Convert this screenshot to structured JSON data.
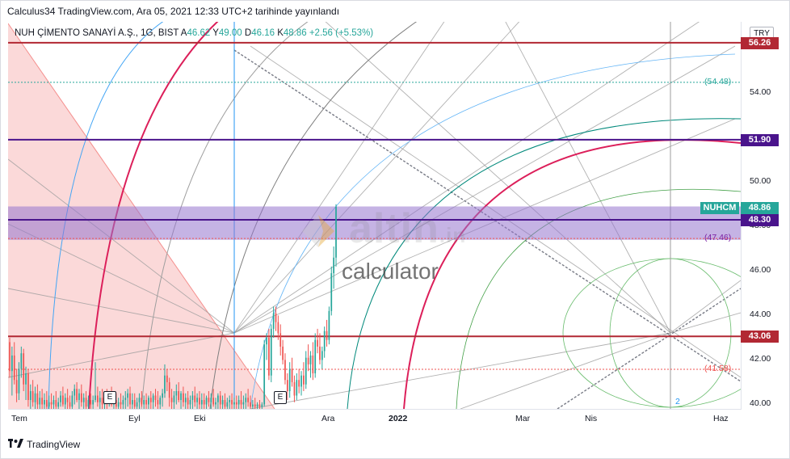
{
  "header": "Calculus34 TradingView.com, Ara 05, 2021 12:33 UTC+2 tarihinde yayınlandı",
  "legend": {
    "symbol": "NUH ÇİMENTO SANAYİ A.Ş., 1G, BIST",
    "o_key": "A",
    "o": "46.62",
    "h_key": "Y",
    "h": "49.00",
    "l_key": "D",
    "l": "46.16",
    "c_key": "K",
    "c": "48.86",
    "change": "+2.56 (+5.53%)"
  },
  "currency": "TRY",
  "footer": "TradingView",
  "watermark": {
    "brand": "altin",
    "tld": ".in",
    "sub": "calculator"
  },
  "colors": {
    "up": "#26a69a",
    "down": "#ef5350",
    "red_line": "#b22833",
    "purple_line": "#4a148c",
    "band": "#9575cd"
  },
  "chart_data": {
    "type": "candlestick",
    "symbol": "NUHCM",
    "ylim": [
      39.8,
      57.2
    ],
    "y_ticks": [
      "40.00",
      "42.00",
      "44.00",
      "46.00",
      "48.00",
      "50.00",
      "54.00"
    ],
    "x_ticks": [
      "Tem",
      "Eyl",
      "Eki",
      "Ara",
      "2022",
      "Mar",
      "Nis",
      "Haz"
    ],
    "price_labels": [
      {
        "label": "56.26",
        "value": 56.26,
        "color": "#b22833"
      },
      {
        "label": "51.90",
        "value": 51.9,
        "color": "#4a148c"
      },
      {
        "label": "NUHCM",
        "value": 48.86,
        "color": "#26a69a"
      },
      {
        "label": "48.86",
        "value": 48.86,
        "color": "#26a69a"
      },
      {
        "label": "48.30",
        "value": 48.3,
        "color": "#4a148c"
      },
      {
        "label": "43.06",
        "value": 43.06,
        "color": "#b22833"
      }
    ],
    "plot_texts": [
      {
        "label": "(54.48)",
        "value": 54.48,
        "color": "#26a69a"
      },
      {
        "label": "(47.46)",
        "value": 47.46,
        "color": "#7b1fa2"
      },
      {
        "label": "(41.58)",
        "value": 41.58,
        "color": "#ef5350"
      },
      {
        "label": "2",
        "value": 40.1,
        "color": "#2196f3"
      }
    ],
    "markers": [
      "E",
      "E"
    ],
    "horizontal_lines": [
      56.26,
      54.48,
      51.9,
      48.3,
      47.46,
      43.06,
      41.58
    ],
    "band": [
      47.4,
      48.9
    ],
    "candles": [
      [
        42.8,
        43.0,
        41.2,
        41.5
      ],
      [
        41.5,
        42.6,
        40.4,
        42.2
      ],
      [
        42.2,
        42.8,
        40.9,
        41.1
      ],
      [
        41.1,
        41.6,
        40.1,
        40.5
      ],
      [
        40.5,
        41.9,
        40.2,
        41.6
      ],
      [
        41.6,
        42.6,
        41.2,
        42.3
      ],
      [
        42.3,
        42.5,
        40.6,
        40.9
      ],
      [
        40.9,
        41.7,
        40.2,
        41.4
      ],
      [
        41.4,
        41.6,
        39.9,
        40.2
      ],
      [
        40.2,
        40.9,
        39.8,
        40.6
      ],
      [
        40.6,
        41.1,
        39.9,
        40.1
      ],
      [
        40.1,
        40.8,
        39.8,
        40.5
      ],
      [
        40.5,
        40.9,
        39.8,
        40.0
      ],
      [
        40.0,
        40.6,
        39.8,
        40.3
      ],
      [
        40.3,
        40.7,
        39.8,
        40.0
      ],
      [
        40.0,
        40.5,
        39.8,
        40.2
      ],
      [
        40.2,
        40.6,
        39.8,
        39.9
      ],
      [
        39.9,
        40.4,
        39.8,
        40.1
      ],
      [
        40.1,
        40.5,
        39.8,
        40.0
      ],
      [
        40.0,
        40.4,
        39.8,
        40.2
      ],
      [
        40.2,
        40.6,
        39.8,
        39.9
      ],
      [
        39.9,
        40.3,
        39.8,
        40.1
      ],
      [
        40.1,
        40.6,
        39.9,
        40.4
      ],
      [
        40.4,
        40.8,
        39.9,
        40.0
      ],
      [
        40.0,
        40.5,
        39.8,
        40.3
      ],
      [
        40.3,
        40.7,
        39.8,
        40.1
      ],
      [
        40.1,
        40.4,
        39.8,
        39.9
      ],
      [
        39.9,
        40.6,
        39.8,
        40.4
      ],
      [
        40.4,
        40.9,
        40.0,
        40.7
      ],
      [
        40.7,
        41.0,
        40.1,
        40.2
      ],
      [
        40.2,
        40.7,
        39.8,
        40.5
      ],
      [
        40.5,
        40.9,
        39.9,
        40.1
      ],
      [
        40.1,
        40.5,
        39.8,
        40.3
      ],
      [
        40.3,
        40.6,
        39.8,
        39.9
      ],
      [
        39.9,
        40.4,
        39.8,
        40.2
      ],
      [
        40.2,
        40.5,
        39.8,
        40.0
      ],
      [
        40.0,
        40.4,
        39.8,
        40.2
      ],
      [
        40.2,
        41.9,
        40.1,
        40.4
      ],
      [
        40.4,
        40.8,
        39.9,
        40.1
      ],
      [
        40.1,
        40.6,
        39.8,
        40.3
      ],
      [
        40.3,
        40.7,
        39.8,
        40.0
      ],
      [
        40.0,
        40.6,
        39.8,
        40.4
      ],
      [
        40.4,
        40.7,
        39.8,
        40.1
      ],
      [
        40.1,
        40.6,
        39.9,
        40.4
      ],
      [
        40.4,
        40.8,
        39.9,
        40.0
      ],
      [
        40.0,
        40.4,
        39.8,
        40.2
      ],
      [
        40.2,
        40.5,
        39.8,
        39.9
      ],
      [
        39.9,
        40.3,
        39.8,
        40.1
      ],
      [
        40.1,
        40.5,
        39.8,
        40.0
      ],
      [
        40.0,
        40.4,
        39.8,
        40.2
      ],
      [
        40.2,
        40.6,
        39.8,
        40.3
      ],
      [
        40.3,
        40.7,
        39.9,
        40.5
      ],
      [
        40.5,
        40.8,
        39.8,
        40.0
      ],
      [
        40.0,
        40.5,
        39.8,
        40.2
      ],
      [
        40.2,
        40.5,
        39.8,
        39.9
      ],
      [
        39.9,
        40.3,
        39.8,
        40.1
      ],
      [
        40.1,
        40.5,
        39.8,
        40.3
      ],
      [
        40.3,
        40.6,
        39.9,
        40.0
      ],
      [
        40.0,
        40.4,
        39.8,
        40.2
      ],
      [
        40.2,
        40.5,
        39.8,
        40.0
      ],
      [
        40.0,
        40.4,
        39.8,
        40.3
      ],
      [
        40.3,
        40.6,
        39.8,
        40.1
      ],
      [
        40.1,
        40.5,
        39.8,
        40.4
      ],
      [
        40.4,
        40.7,
        39.9,
        40.2
      ],
      [
        40.2,
        40.6,
        39.8,
        40.0
      ],
      [
        40.0,
        40.4,
        39.8,
        40.3
      ],
      [
        40.3,
        40.7,
        39.9,
        40.5
      ],
      [
        40.5,
        41.8,
        40.3,
        41.3
      ],
      [
        41.3,
        41.6,
        40.6,
        41.0
      ],
      [
        41.0,
        41.2,
        39.9,
        40.3
      ],
      [
        40.3,
        40.7,
        39.8,
        40.1
      ],
      [
        40.1,
        40.6,
        39.8,
        40.4
      ],
      [
        40.4,
        40.9,
        40.0,
        40.6
      ],
      [
        40.6,
        41.0,
        40.1,
        40.2
      ],
      [
        40.2,
        40.6,
        39.8,
        40.5
      ],
      [
        40.5,
        40.8,
        39.9,
        40.1
      ],
      [
        40.1,
        40.5,
        39.8,
        40.3
      ],
      [
        40.3,
        40.6,
        39.8,
        40.0
      ],
      [
        40.0,
        40.4,
        39.8,
        40.2
      ],
      [
        40.2,
        40.6,
        39.8,
        40.4
      ],
      [
        40.4,
        40.8,
        39.9,
        40.1
      ],
      [
        40.1,
        40.5,
        39.8,
        40.3
      ],
      [
        40.3,
        40.6,
        39.8,
        40.0
      ],
      [
        40.0,
        40.5,
        39.8,
        40.2
      ],
      [
        40.2,
        40.5,
        39.8,
        40.0
      ],
      [
        40.0,
        40.4,
        39.8,
        40.3
      ],
      [
        40.3,
        40.6,
        39.9,
        40.1
      ],
      [
        40.1,
        40.5,
        39.8,
        40.3
      ],
      [
        40.3,
        40.7,
        39.9,
        40.0
      ],
      [
        40.0,
        40.3,
        39.8,
        40.1
      ],
      [
        40.1,
        40.5,
        39.8,
        40.4
      ],
      [
        40.4,
        40.6,
        39.8,
        40.0
      ],
      [
        40.0,
        40.4,
        39.8,
        40.2
      ],
      [
        40.2,
        40.5,
        39.8,
        39.9
      ],
      [
        39.9,
        40.3,
        39.8,
        40.1
      ],
      [
        40.1,
        40.4,
        39.8,
        40.2
      ],
      [
        40.2,
        40.5,
        39.8,
        40.0
      ],
      [
        40.0,
        40.3,
        39.8,
        40.1
      ],
      [
        40.1,
        40.4,
        39.8,
        40.0
      ],
      [
        40.0,
        40.4,
        39.8,
        40.2
      ],
      [
        40.2,
        40.6,
        39.8,
        40.0
      ],
      [
        40.0,
        40.4,
        39.8,
        40.1
      ],
      [
        40.1,
        40.5,
        39.8,
        40.3
      ],
      [
        40.3,
        40.7,
        39.9,
        40.1
      ],
      [
        40.1,
        40.4,
        39.8,
        39.9
      ],
      [
        39.9,
        40.2,
        39.8,
        40.0
      ],
      [
        40.0,
        40.3,
        39.8,
        39.9
      ],
      [
        39.9,
        40.1,
        39.8,
        40.0
      ],
      [
        40.0,
        40.2,
        39.8,
        39.9
      ],
      [
        39.9,
        40.1,
        39.8,
        40.0
      ],
      [
        40.0,
        42.9,
        39.9,
        42.7
      ],
      [
        42.7,
        43.2,
        42.0,
        43.0
      ],
      [
        43.0,
        43.4,
        41.1,
        41.3
      ],
      [
        41.3,
        43.6,
        41.0,
        43.4
      ],
      [
        43.4,
        44.4,
        43.0,
        44.1
      ],
      [
        44.1,
        44.4,
        43.3,
        43.7
      ],
      [
        43.7,
        44.0,
        42.9,
        43.2
      ],
      [
        43.2,
        43.6,
        42.2,
        42.6
      ],
      [
        42.6,
        42.9,
        41.8,
        42.0
      ],
      [
        42.0,
        42.3,
        40.9,
        41.1
      ],
      [
        41.1,
        41.4,
        40.2,
        40.6
      ],
      [
        40.6,
        41.9,
        40.3,
        41.6
      ],
      [
        41.6,
        42.1,
        40.8,
        41.0
      ],
      [
        41.0,
        41.3,
        40.1,
        40.4
      ],
      [
        40.4,
        41.4,
        40.2,
        41.1
      ],
      [
        41.1,
        41.6,
        40.5,
        40.8
      ],
      [
        40.8,
        41.5,
        40.4,
        41.3
      ],
      [
        41.3,
        41.9,
        40.6,
        40.9
      ],
      [
        40.9,
        42.4,
        40.7,
        42.1
      ],
      [
        42.1,
        42.7,
        41.5,
        41.8
      ],
      [
        41.8,
        42.4,
        41.2,
        42.2
      ],
      [
        42.2,
        42.8,
        41.1,
        41.4
      ],
      [
        41.4,
        43.2,
        41.2,
        42.9
      ],
      [
        42.9,
        43.4,
        42.3,
        42.6
      ],
      [
        42.6,
        43.2,
        41.8,
        42.0
      ],
      [
        42.0,
        42.6,
        41.6,
        42.4
      ],
      [
        42.4,
        43.5,
        42.1,
        43.3
      ],
      [
        43.3,
        43.8,
        42.6,
        42.9
      ],
      [
        42.9,
        44.4,
        42.7,
        44.2
      ],
      [
        44.2,
        46.2,
        44.0,
        45.9
      ],
      [
        45.9,
        47.1,
        45.2,
        46.6
      ],
      [
        46.6,
        49.0,
        46.2,
        48.9
      ]
    ]
  }
}
